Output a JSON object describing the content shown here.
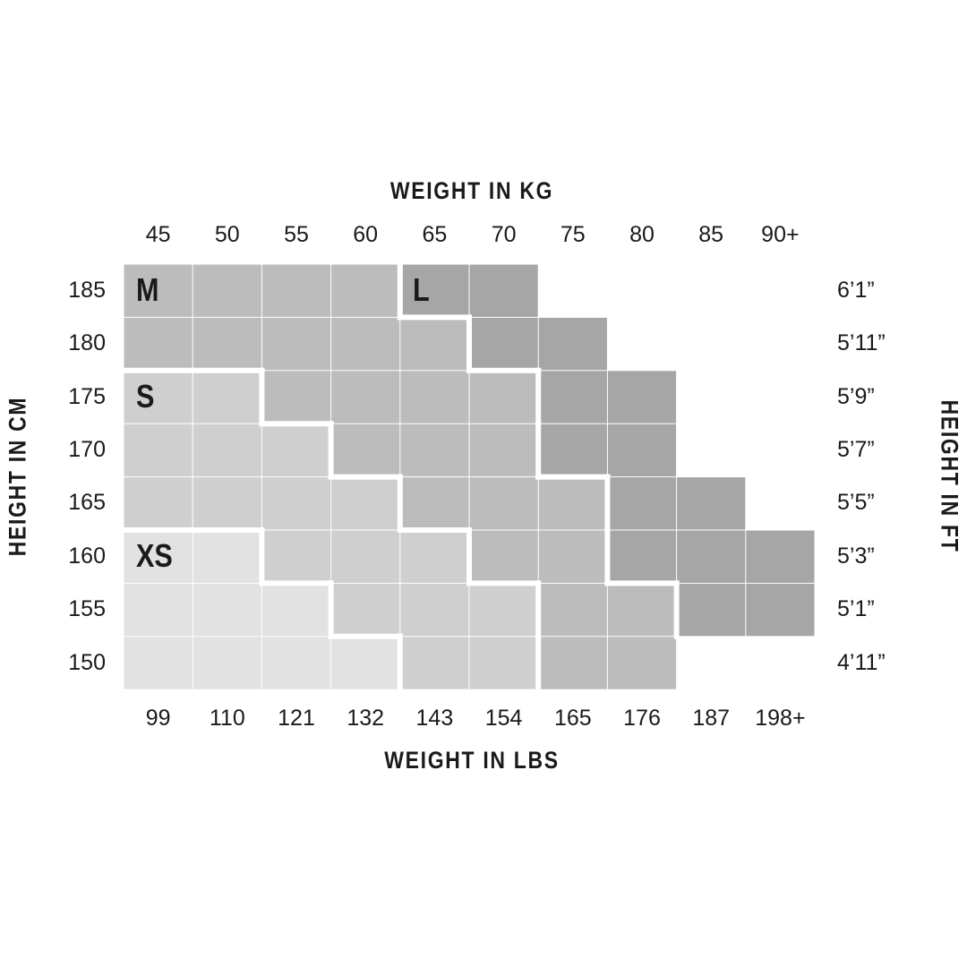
{
  "chart_data": {
    "type": "heatmap",
    "title": "",
    "x_top_label": "WEIGHT IN KG",
    "x_bottom_label": "WEIGHT IN LBS",
    "y_left_label": "HEIGHT IN CM",
    "y_right_label": "HEIGHT IN FT",
    "weight_kg": [
      "45",
      "50",
      "55",
      "60",
      "65",
      "70",
      "75",
      "80",
      "85",
      "90+"
    ],
    "weight_lbs": [
      "99",
      "110",
      "121",
      "132",
      "143",
      "154",
      "165",
      "176",
      "187",
      "198+"
    ],
    "height_cm": [
      "185",
      "180",
      "175",
      "170",
      "165",
      "160",
      "155",
      "150"
    ],
    "height_ft": [
      "6’1”",
      "5’11”",
      "5’9”",
      "5’7”",
      "5’5”",
      "5’3”",
      "5’1”",
      "4’11”"
    ],
    "sizes": [
      "XS",
      "S",
      "M",
      "L"
    ],
    "size_colors": {
      "XS": "#e2e2e2",
      "S": "#cfcfcf",
      "M": "#bcbcbc",
      "L": "#a6a6a6"
    },
    "grid": [
      [
        "M",
        "M",
        "M",
        "M",
        "L",
        "L",
        "",
        "",
        "",
        ""
      ],
      [
        "M",
        "M",
        "M",
        "M",
        "M",
        "L",
        "L",
        "",
        "",
        ""
      ],
      [
        "S",
        "S",
        "M",
        "M",
        "M",
        "M",
        "L",
        "L",
        "",
        ""
      ],
      [
        "S",
        "S",
        "S",
        "M",
        "M",
        "M",
        "L",
        "L",
        "",
        ""
      ],
      [
        "S",
        "S",
        "S",
        "S",
        "M",
        "M",
        "M",
        "L",
        "L",
        ""
      ],
      [
        "XS",
        "XS",
        "S",
        "S",
        "S",
        "M",
        "M",
        "L",
        "L",
        "L"
      ],
      [
        "XS",
        "XS",
        "XS",
        "S",
        "S",
        "S",
        "M",
        "M",
        "L",
        "L"
      ],
      [
        "XS",
        "XS",
        "XS",
        "XS",
        "S",
        "S",
        "M",
        "M",
        "",
        ""
      ]
    ]
  }
}
